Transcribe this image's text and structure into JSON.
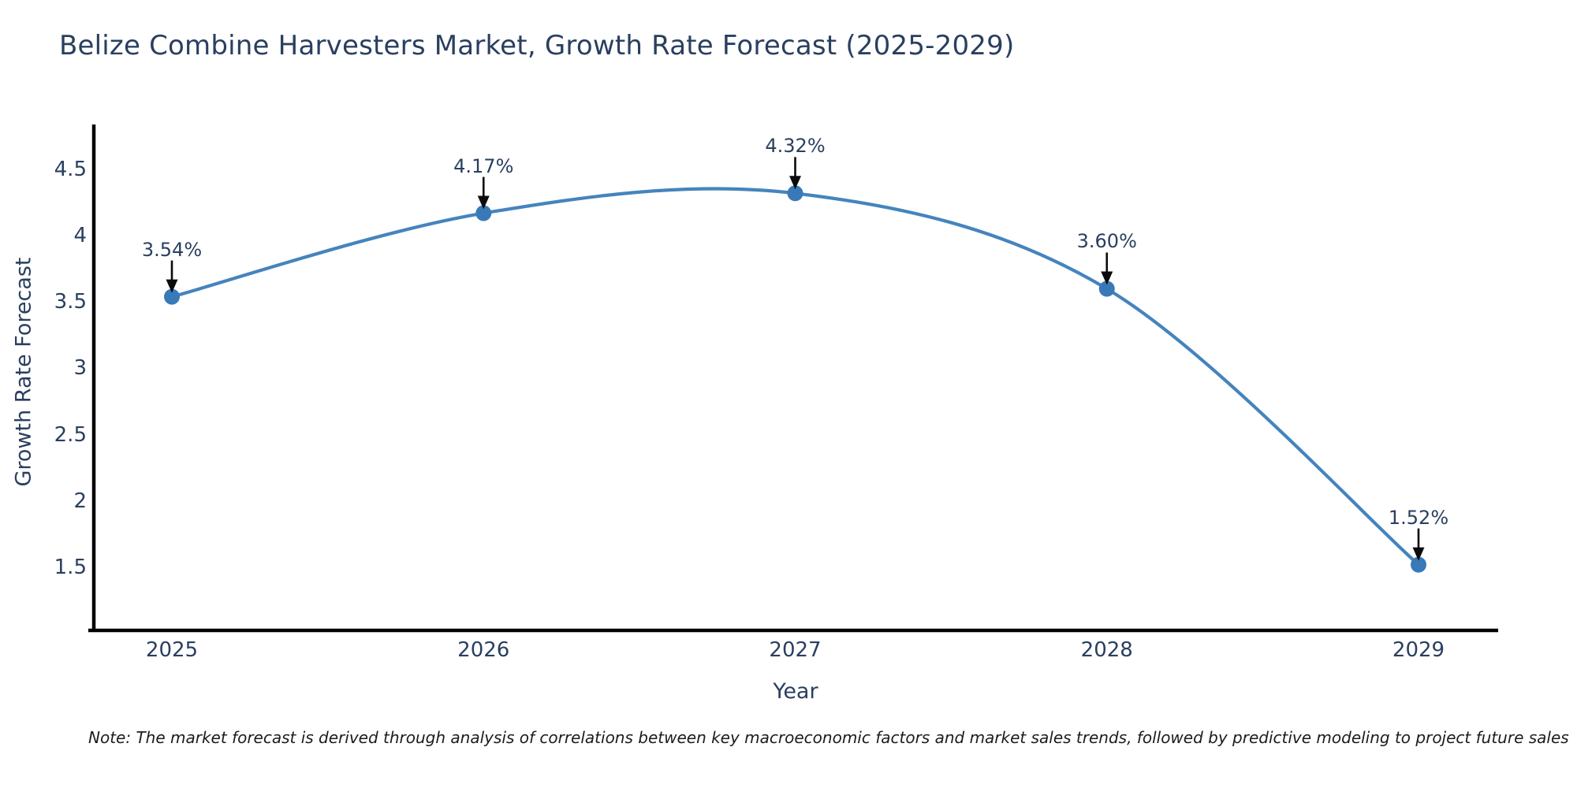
{
  "title": "Belize Combine Harvesters Market, Growth Rate Forecast (2025-2029)",
  "note": "Note: The market forecast is derived through analysis of correlations between key macroeconomic factors and market sales trends, followed by predictive modeling to project future sales",
  "chart_data": {
    "type": "line",
    "title": "Belize Combine Harvesters Market, Growth Rate Forecast (2025-2029)",
    "xlabel": "Year",
    "ylabel": "Growth Rate Forecast",
    "x": [
      2025,
      2026,
      2027,
      2028,
      2029
    ],
    "values": [
      3.54,
      4.17,
      4.32,
      3.6,
      1.52
    ],
    "labels": [
      "3.54%",
      "4.17%",
      "4.32%",
      "3.60%",
      "1.52%"
    ],
    "xticks": [
      "2025",
      "2026",
      "2027",
      "2028",
      "2029"
    ],
    "yticks": [
      "4.5",
      "4",
      "3.5",
      "3",
      "2.5",
      "2",
      "1.5"
    ],
    "ytick_values": [
      4.5,
      4.0,
      3.5,
      3.0,
      2.5,
      2.0,
      1.5
    ],
    "xlim": [
      2024.74,
      2029.26
    ],
    "ylim": [
      1.03,
      4.88
    ],
    "line_shape": "spline",
    "grid": false,
    "legend_position": "none",
    "colors": {
      "line": "#4584bd",
      "marker": "#3a79b8",
      "axis_spine": "#000000",
      "text": "#2a3f5f",
      "annotation_arrow": "#0b0b0b",
      "note_text": "#1c1c1c",
      "background": "#ffffff"
    }
  }
}
